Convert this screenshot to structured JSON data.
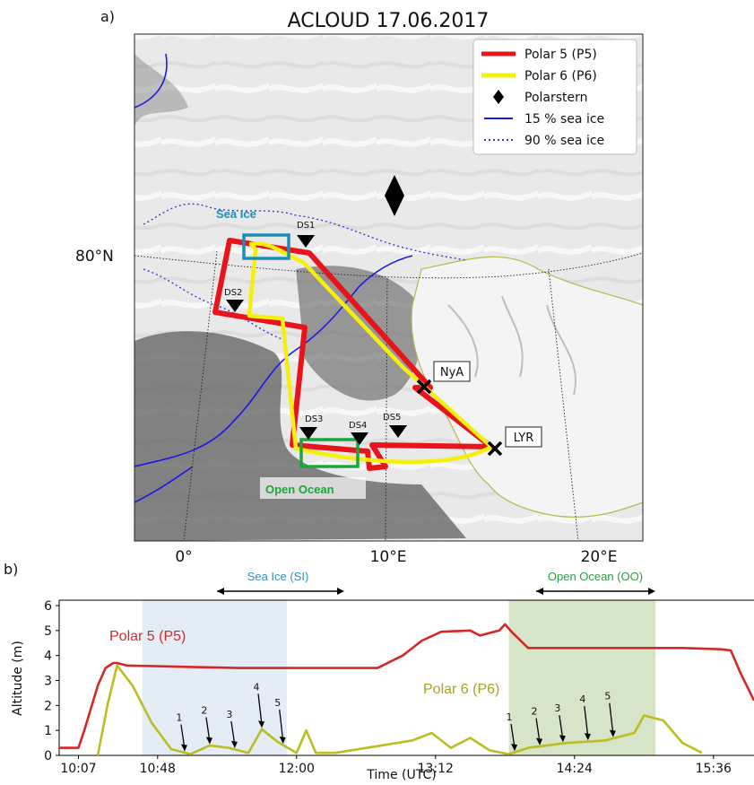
{
  "panel_a": {
    "letter": "a)",
    "title": "ACLOUD 17.06.2017",
    "lat_label": "80°N",
    "lon_labels": [
      "0°",
      "10°E",
      "20°E"
    ],
    "legend": {
      "p5": "Polar 5 (P5)",
      "p6": "Polar 6 (P6)",
      "polarstern": "Polarstern",
      "ice15": "15 % sea ice",
      "ice90": "90 % sea ice"
    },
    "boxes": {
      "sea_ice": "Sea Ice",
      "open_ocean": "Open Ocean"
    },
    "dropsondes": [
      "DS1",
      "DS2",
      "DS3",
      "DS4",
      "DS5"
    ],
    "stations": {
      "nya": "NyA",
      "lyr": "LYR"
    },
    "colors": {
      "p5": "#e8141b",
      "p6": "#f5ef0f",
      "ice15": "#1a1ae6",
      "ice90": "#3a3ad8",
      "sea_ice_box": "#1b8fb8",
      "open_ocean_box": "#1aa63a",
      "coast": "#b8b84a"
    }
  },
  "panel_b": {
    "letter": "b)",
    "sea_ice_label": "Sea Ice (SI)",
    "open_ocean_label": "Open Ocean (OO)",
    "sea_ice_markers": [
      "1",
      "2",
      "3",
      "4",
      "5"
    ],
    "open_ocean_markers": [
      "1",
      "2",
      "3",
      "4",
      "5"
    ],
    "p5_label": "Polar 5 (P5)",
    "p6_label": "Polar 6 (P6)",
    "colors": {
      "p5": "#d62728",
      "p6": "#bcbd22",
      "sea_ice_shade": "#dbe7f3",
      "open_ocean_shade": "#c8dcb4"
    }
  },
  "chart_data": {
    "type": "line",
    "xlabel": "Time (UTC)",
    "ylabel": "Altitude (m)",
    "ylim": [
      0,
      6
    ],
    "yticks": [
      0,
      1,
      2,
      3,
      4,
      5,
      6
    ],
    "xticks": [
      "10:07",
      "10:48",
      "12:00",
      "13:12",
      "14:24",
      "15:36"
    ],
    "xlim": [
      "09:57",
      "15:57"
    ],
    "grid": false,
    "shaded_ranges": [
      {
        "label": "Sea Ice (SI)",
        "start": "10:40",
        "end": "11:55"
      },
      {
        "label": "Open Ocean (OO)",
        "start": "13:50",
        "end": "15:06"
      }
    ],
    "series": [
      {
        "name": "Polar 5 (P5)",
        "x": [
          "09:57",
          "10:07",
          "10:10",
          "10:17",
          "10:21",
          "10:25",
          "10:27",
          "10:32",
          "11:00",
          "11:30",
          "12:00",
          "12:30",
          "12:42",
          "12:55",
          "13:05",
          "13:15",
          "13:30",
          "13:35",
          "13:45",
          "13:48",
          "13:52",
          "14:00",
          "14:30",
          "15:00",
          "15:20",
          "15:40",
          "15:45",
          "15:50",
          "15:57"
        ],
        "values": [
          0.3,
          0.3,
          1.0,
          2.8,
          3.5,
          3.7,
          3.7,
          3.6,
          3.55,
          3.5,
          3.5,
          3.5,
          3.5,
          4.0,
          4.6,
          4.95,
          5.0,
          4.8,
          5.0,
          5.25,
          4.9,
          4.3,
          4.3,
          4.3,
          4.3,
          4.25,
          4.2,
          3.3,
          2.2
        ]
      },
      {
        "name": "Polar 6 (P6)",
        "x": [
          "10:17",
          "10:22",
          "10:27",
          "10:35",
          "10:45",
          "10:55",
          "11:05",
          "11:15",
          "11:25",
          "11:35",
          "11:42",
          "11:50",
          "12:00",
          "12:05",
          "12:10",
          "12:20",
          "12:40",
          "13:00",
          "13:10",
          "13:20",
          "13:30",
          "13:40",
          "13:50",
          "14:00",
          "14:20",
          "14:40",
          "14:55",
          "15:00",
          "15:10",
          "15:20",
          "15:30"
        ],
        "values": [
          0.0,
          2.0,
          3.6,
          2.8,
          1.3,
          0.25,
          0.05,
          0.4,
          0.3,
          0.1,
          1.05,
          0.55,
          0.1,
          1.0,
          0.1,
          0.1,
          0.35,
          0.6,
          0.9,
          0.3,
          0.7,
          0.2,
          0.05,
          0.3,
          0.5,
          0.6,
          0.9,
          1.6,
          1.4,
          0.5,
          0.1
        ]
      }
    ]
  }
}
